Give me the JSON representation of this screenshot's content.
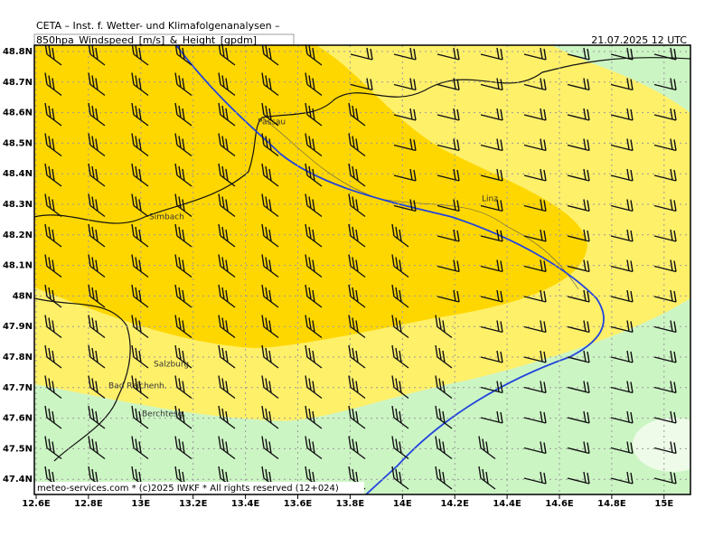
{
  "header": {
    "title": "CETA – Inst. f. Wetter- und Klimafolgenanalysen –",
    "subtitle": "850hpa_Windspeed_[m/s]_&_Height_[gpdm]",
    "valid_time": "21.07.2025 12 UTC"
  },
  "map": {
    "lon_ticks": [
      "12.6E",
      "12.8E",
      "13E",
      "13.2E",
      "13.4E",
      "13.6E",
      "13.8E",
      "14E",
      "14.2E",
      "14.4E",
      "14.6E",
      "14.8E",
      "15E"
    ],
    "lat_ticks": [
      "48.8N",
      "48.7N",
      "48.6N",
      "48.5N",
      "48.4N",
      "48.3N",
      "48.2N",
      "48.1N",
      "48N",
      "47.9N",
      "47.8N",
      "47.7N",
      "47.6N",
      "47.5N",
      "47.4N"
    ],
    "places": [
      {
        "label": "Passau"
      },
      {
        "label": "Linz"
      },
      {
        "label": "Simbach"
      },
      {
        "label": "Salzburg"
      },
      {
        "label": "Bad Reichenh."
      },
      {
        "label": "Berchtesg."
      }
    ]
  },
  "footer": "meteo-services.com * (c)2025 IWKF * All rights reserved (12+024)"
}
